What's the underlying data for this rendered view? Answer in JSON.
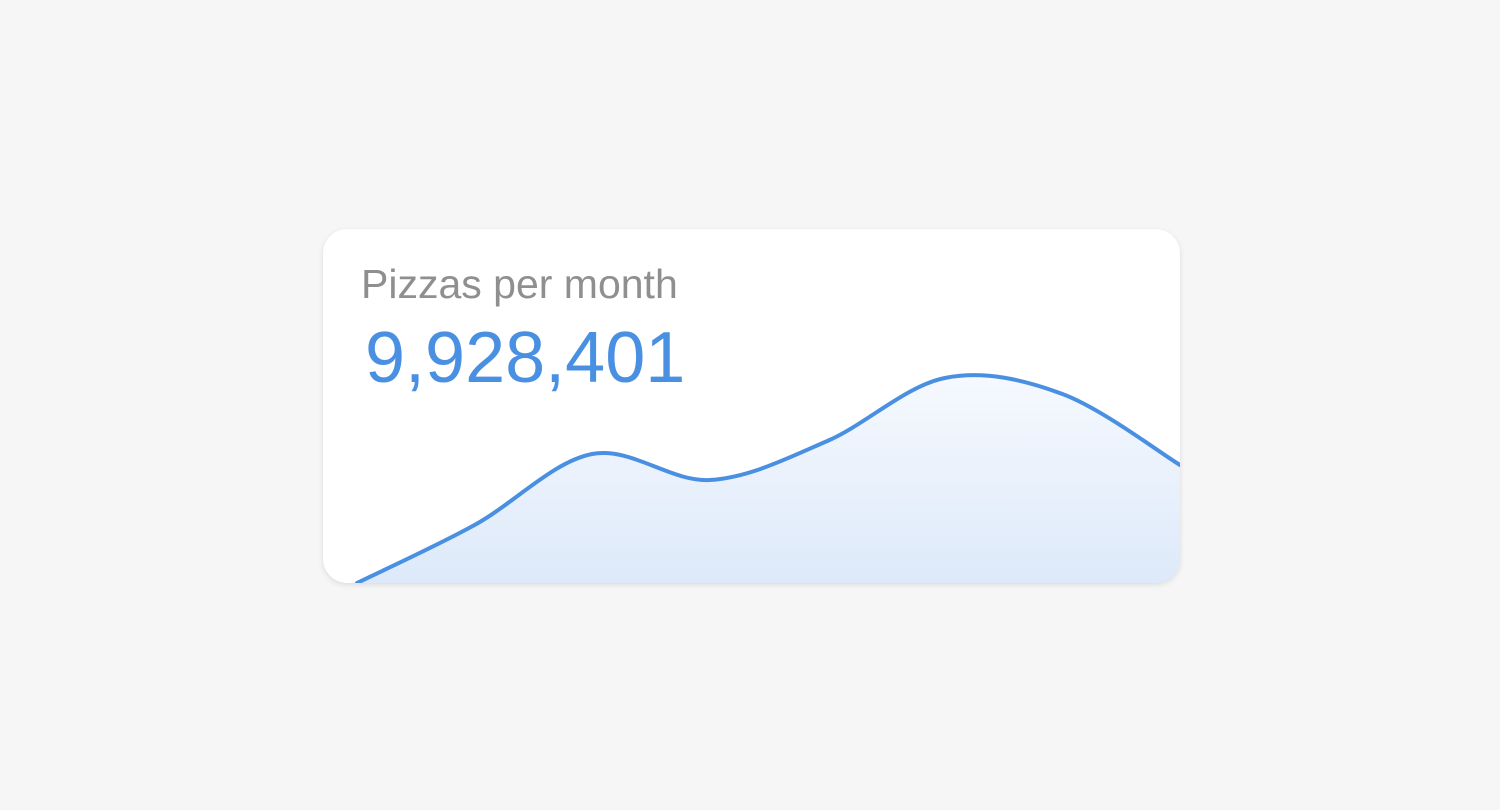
{
  "card": {
    "title": "Pizzas per month",
    "value": "9,928,401"
  },
  "colors": {
    "background": "#f6f6f6",
    "card": "#ffffff",
    "title": "#8f8f8f",
    "accent": "#4a90e2",
    "fill_top": "#f6f9fe",
    "fill_bottom": "#dde9fa"
  },
  "chart_data": {
    "type": "area",
    "x": [
      0,
      1,
      2,
      3,
      4,
      5,
      6,
      7
    ],
    "values": [
      0,
      58,
      129,
      103,
      142,
      205,
      189,
      118
    ],
    "ylim": [
      0,
      230
    ],
    "grid": false,
    "axes": false,
    "legend": "none"
  }
}
